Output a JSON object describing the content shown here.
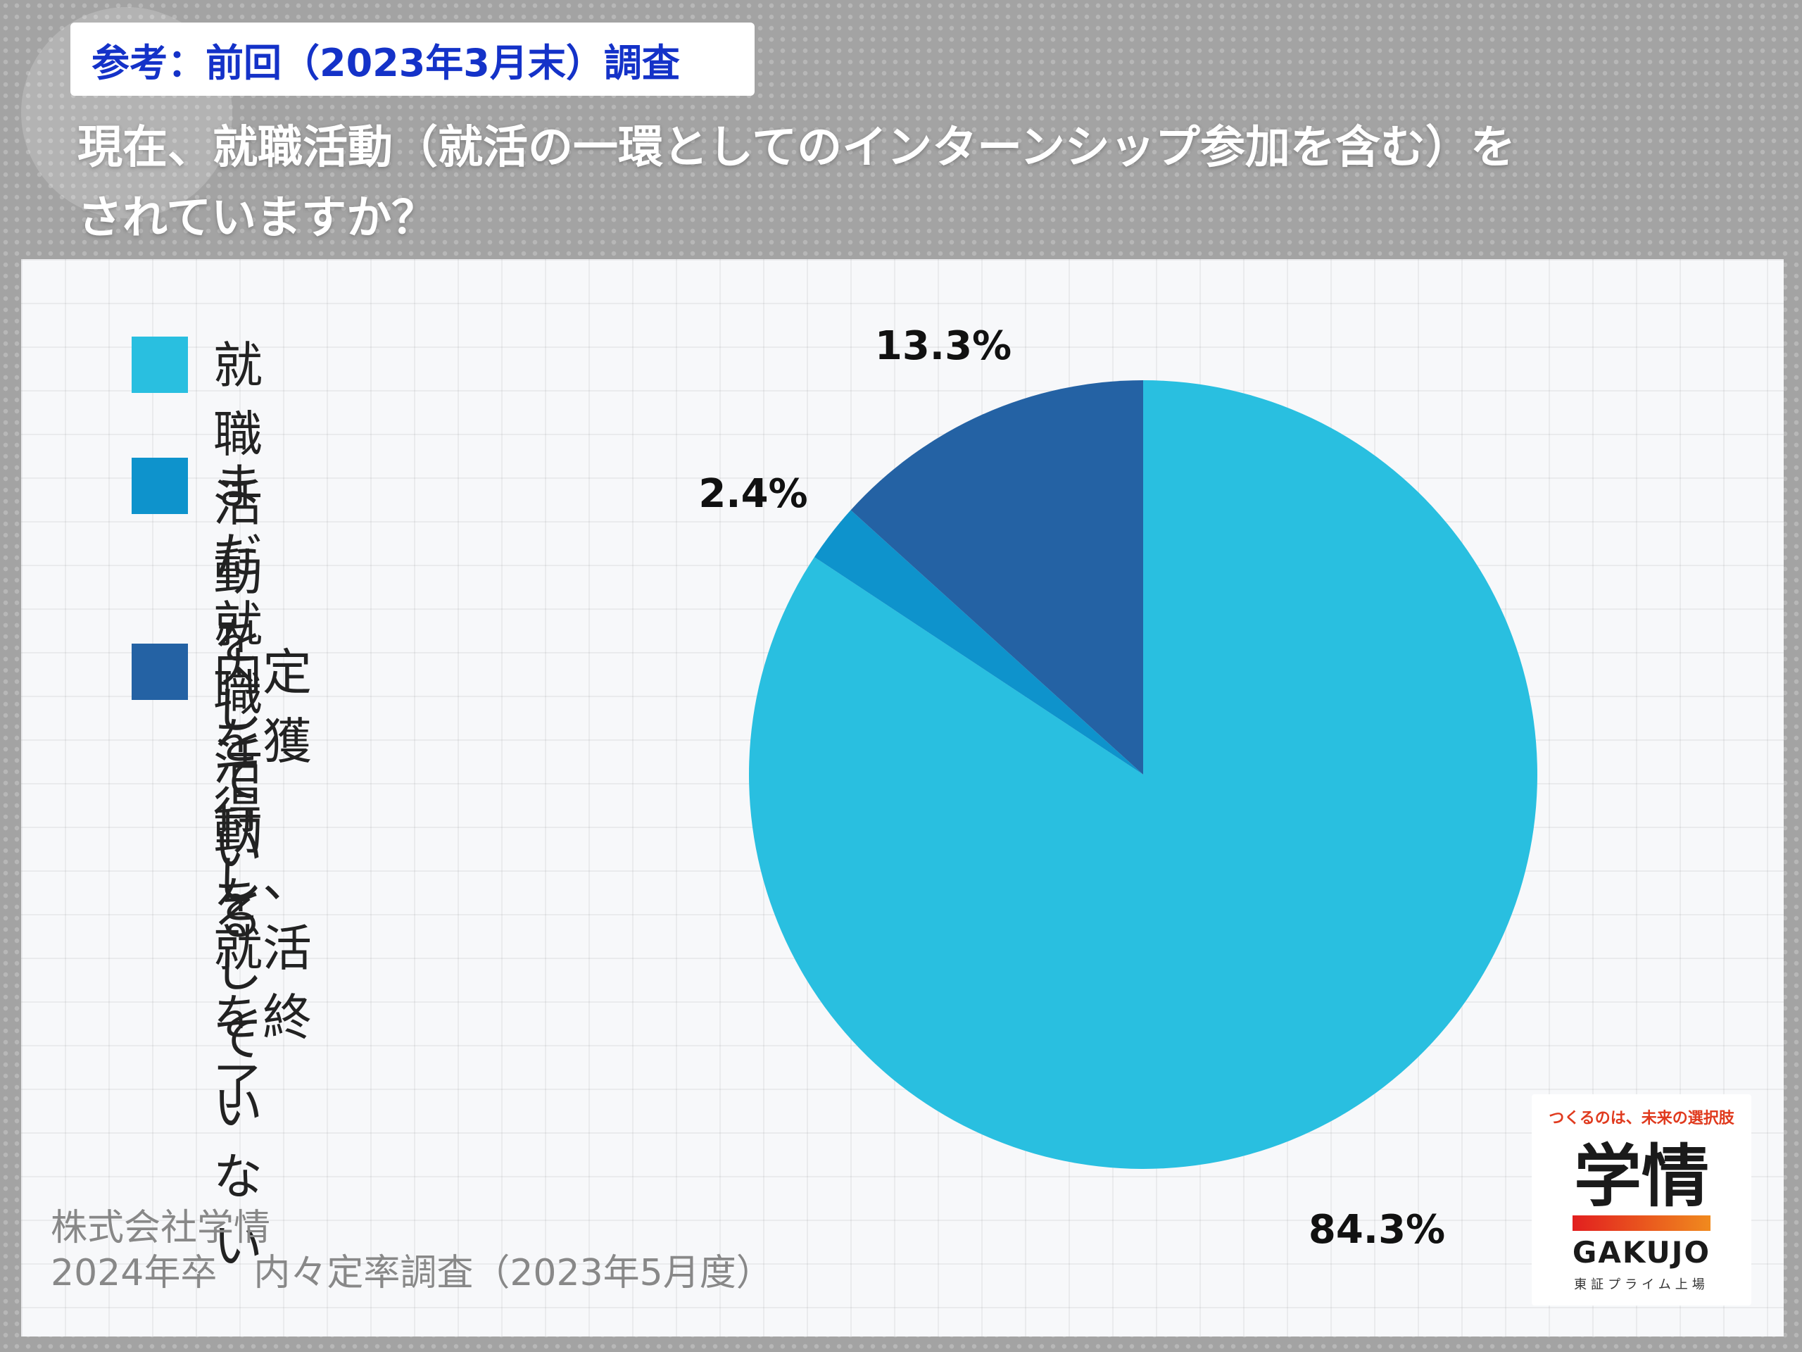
{
  "header": {
    "tag": "参考：前回（2023年3月末）調査",
    "question_line1": "現在、就職活動（就活の一環としてのインターンシップ参加を含む）を",
    "question_line2": "されていますか？"
  },
  "chart_data": {
    "type": "pie",
    "title": "現在、就職活動（就活の一環としてのインターンシップ参加を含む）をされていますか？",
    "legend_position": "left",
    "slices": [
      {
        "label": "就職活動をしている",
        "value": 84.3,
        "value_label": "84.3%",
        "color": "#29bfe0"
      },
      {
        "label": "まだ就職活動をしていない",
        "legend_text": "まだ就職活動を\nしていない",
        "value": 2.4,
        "value_label": "2.4%",
        "color": "#0e93cc"
      },
      {
        "label": "内定を獲得し、就活を終了",
        "legend_text": "内定を獲得し、\n就活を終了",
        "value": 13.3,
        "value_label": "13.3%",
        "color": "#2462a4"
      }
    ]
  },
  "footer": {
    "company": "株式会社学情",
    "survey": "2024年卒　内々定率調査（2023年5月度）"
  },
  "logo": {
    "tagline": "つくるのは、未来の選択肢",
    "name": "学情",
    "name_en": "GAKUJO",
    "listing": "東証プライム上場"
  }
}
